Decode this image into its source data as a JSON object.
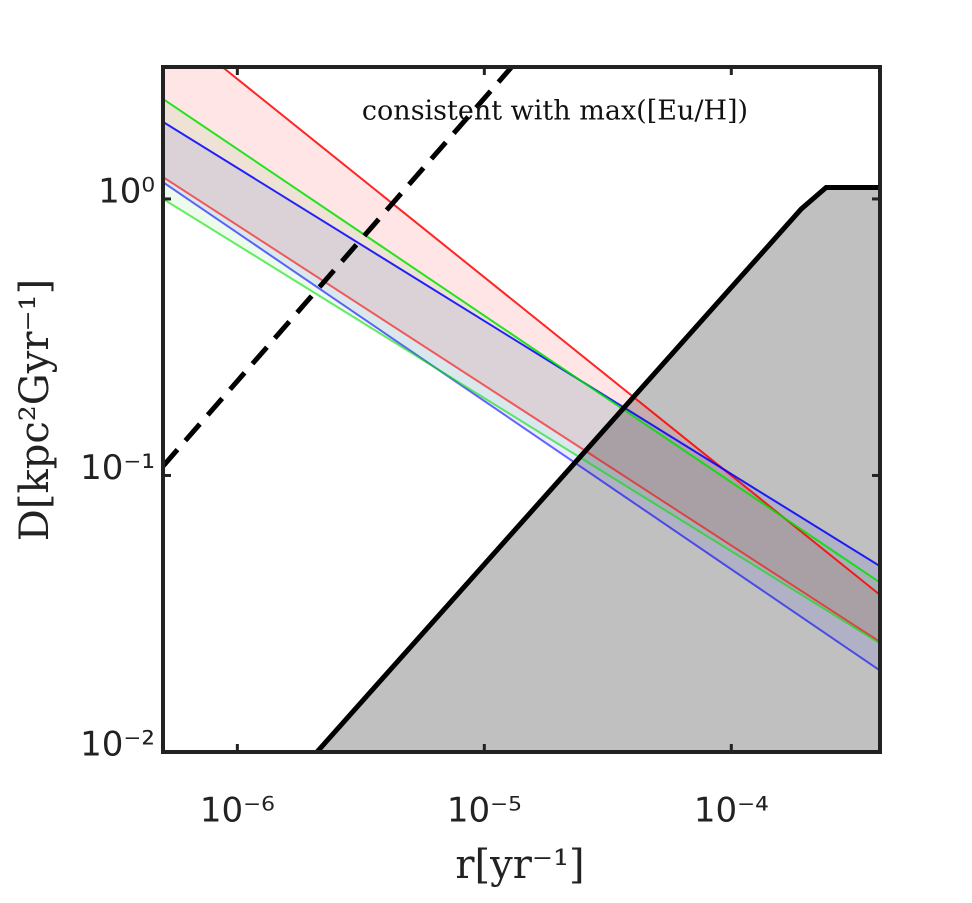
{
  "chart_data": {
    "type": "band",
    "xlabel": "r[yr⁻¹]",
    "ylabel": "D[kpc²Gyr⁻¹]",
    "annotation": "consistent with max([Eu/H])",
    "xlog": true,
    "ylog": true,
    "xlim": [
      5e-07,
      0.0004
    ],
    "ylim": [
      0.01,
      3
    ],
    "xticks": [
      {
        "value": 1e-06,
        "label": "10⁻⁶"
      },
      {
        "value": 1e-05,
        "label": "10⁻⁵"
      },
      {
        "value": 0.0001,
        "label": "10⁻⁴"
      }
    ],
    "yticks": [
      {
        "value": 0.01,
        "label": "10⁻²"
      },
      {
        "value": 0.1,
        "label": "10⁻¹"
      },
      {
        "value": 1,
        "label": "10⁰"
      }
    ],
    "series": [
      {
        "color": "#ff0000",
        "fill": "rgba(255,0,0,0.1)",
        "x": [
          5e-07,
          8.7e-07,
          0.0004
        ],
        "upper": [
          3,
          3,
          0.037
        ],
        "lower": [
          1.2,
          null,
          0.025
        ]
      },
      {
        "color": "#0000ff",
        "fill": "rgba(0,0,255,0.08)",
        "x": [
          5e-07,
          0.0004
        ],
        "upper": [
          1.9,
          0.047
        ],
        "lower": [
          1.15,
          0.0197
        ]
      },
      {
        "color": "#00e000",
        "fill": "rgba(0,200,0,0.07)",
        "x": [
          5e-07,
          0.0004
        ],
        "upper": [
          2.3,
          0.041
        ],
        "lower": [
          1.0,
          0.0247
        ]
      }
    ],
    "excluded": {
      "color": "#c0c0c0",
      "x": [
        2.1e-06,
        0.000192,
        0.000242,
        0.0004
      ],
      "y": [
        0.01,
        0.92,
        1.1,
        1.1
      ]
    },
    "limit_line": {
      "color": "#000000",
      "x": [
        5e-07,
        1.29e-05
      ],
      "y": [
        0.108,
        3
      ]
    }
  }
}
